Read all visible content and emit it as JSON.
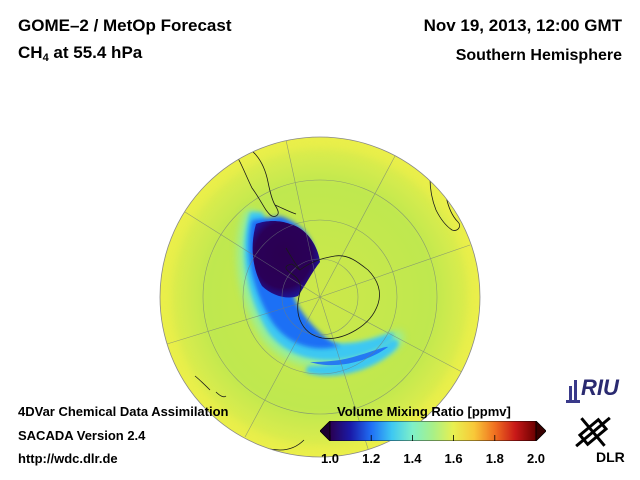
{
  "header": {
    "product": "GOME–2 / MetOp Forecast",
    "species": "CH",
    "species_sub": "4",
    "level": " at 55.4 hPa",
    "datetime": "Nov 19, 2013, 12:00 GMT",
    "region": "Southern Hemisphere"
  },
  "footer": {
    "method": "4DVar Chemical Data Assimilation",
    "version": "SACADA Version 2.4",
    "url": "http://wdc.dlr.de"
  },
  "colorbar": {
    "title": "Volume Mixing Ratio [ppmv]",
    "ticks": [
      "1.0",
      "1.2",
      "1.4",
      "1.6",
      "1.8",
      "2.0"
    ],
    "min": 1.0,
    "max": 2.0,
    "colors": [
      "#2a0050",
      "#1a1aa8",
      "#1f6ff5",
      "#3ec8f2",
      "#7ef0c8",
      "#a8f088",
      "#e8f050",
      "#f8c838",
      "#f07020",
      "#c81818",
      "#6a0000"
    ]
  },
  "logos": {
    "riu": "RIU",
    "dlr": "DLR"
  },
  "map": {
    "projection": "orthographic, South Pole centered",
    "background_value_ppmv": 1.6,
    "depleted_value_ppmv": 1.0
  }
}
